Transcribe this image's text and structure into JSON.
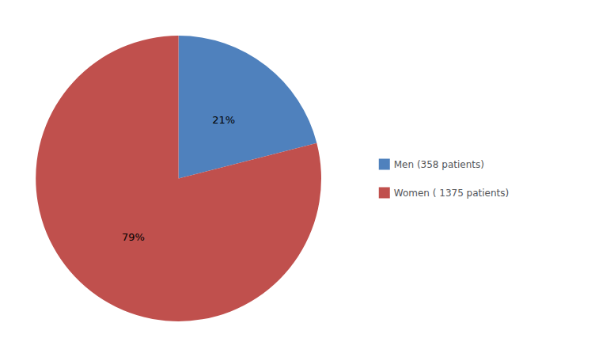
{
  "chart_data": {
    "type": "pie",
    "categories": [
      "Men (358 patients)",
      "Women ( 1375 patients)"
    ],
    "values": [
      21,
      79
    ],
    "value_labels": [
      "21%",
      "79%"
    ],
    "colors": [
      "#4f81bd",
      "#c0504d"
    ],
    "data_labels": true,
    "legend": "right"
  }
}
